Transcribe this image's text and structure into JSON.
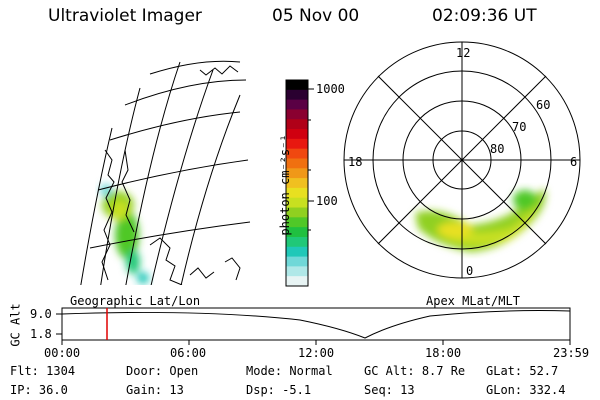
{
  "header": {
    "instrument": "Ultraviolet Imager",
    "date": "05 Nov 00",
    "time": "02:09:36 UT"
  },
  "panels": {
    "left_label": "Geographic Lat/Lon",
    "right_label": "Apex MLat/MLT"
  },
  "colorbar": {
    "axis_label": "photon cm⁻²s⁻¹",
    "ticks": [
      "1000",
      "100"
    ],
    "colors": [
      "#000000",
      "#2a0030",
      "#5a0044",
      "#8a0030",
      "#b00018",
      "#d00010",
      "#e81810",
      "#f04810",
      "#f07010",
      "#f09818",
      "#f0c020",
      "#e8e020",
      "#c8e020",
      "#90d020",
      "#50c828",
      "#20c040",
      "#20c878",
      "#20c8b8",
      "#70d8d8",
      "#b0e8e8",
      "#e8f4f4"
    ]
  },
  "polar": {
    "mlt_labels": [
      "12",
      "18",
      "6",
      "0"
    ],
    "lat_labels": [
      "60",
      "70",
      "80"
    ]
  },
  "timeline": {
    "ylabel": "GC Alt",
    "y_ticks": [
      "9.0",
      "1.8"
    ],
    "x_ticks": [
      "00:00",
      "06:00",
      "12:00",
      "18:00",
      "23:59"
    ],
    "marker_time": "02:09"
  },
  "status": {
    "flt": {
      "label": "Flt:",
      "value": "1304"
    },
    "door": {
      "label": "Door:",
      "value": "Open"
    },
    "mode": {
      "label": "Mode:",
      "value": "Normal"
    },
    "gcalt": {
      "label": "GC Alt:",
      "value": "8.7 Re"
    },
    "glat": {
      "label": "GLat:",
      "value": "52.7"
    },
    "ip": {
      "label": "IP:",
      "value": "36.0"
    },
    "gain": {
      "label": "Gain:",
      "value": "13"
    },
    "dsp": {
      "label": "Dsp:",
      "value": "-5.1"
    },
    "seq": {
      "label": "Seq:",
      "value": "13"
    },
    "glon": {
      "label": "GLon:",
      "value": "332.4"
    }
  }
}
